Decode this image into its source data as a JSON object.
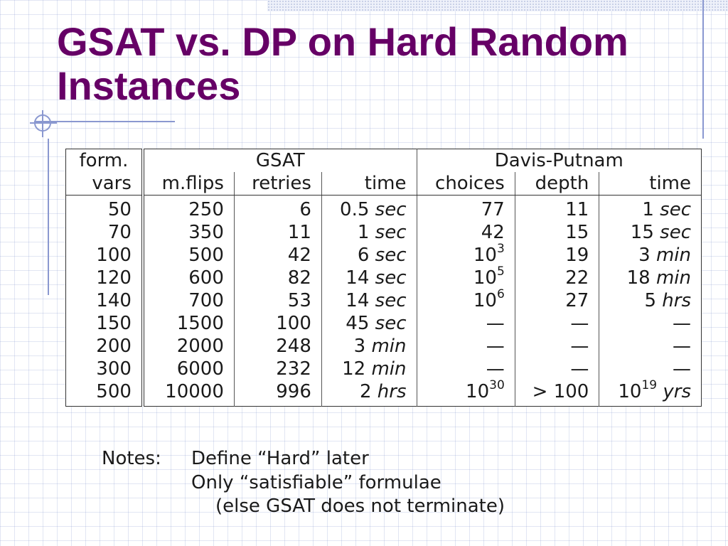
{
  "slide": {
    "title": "GSAT vs. DP on Hard Random Instances"
  },
  "table": {
    "group_headers": [
      "form.",
      "GSAT",
      "Davis-Putnam"
    ],
    "columns": [
      "vars",
      "m.flips",
      "retries",
      "time",
      "choices",
      "depth",
      "time"
    ],
    "rows": [
      {
        "vars": "50",
        "mflips": "250",
        "retries": "6",
        "gsat_time": "0.5",
        "gsat_unit": "sec",
        "choices": "77",
        "choices_exp": "",
        "depth": "11",
        "dp_time": "1",
        "dp_exp": "",
        "dp_unit": "sec"
      },
      {
        "vars": "70",
        "mflips": "350",
        "retries": "11",
        "gsat_time": "1",
        "gsat_unit": "sec",
        "choices": "42",
        "choices_exp": "",
        "depth": "15",
        "dp_time": "15",
        "dp_exp": "",
        "dp_unit": "sec"
      },
      {
        "vars": "100",
        "mflips": "500",
        "retries": "42",
        "gsat_time": "6",
        "gsat_unit": "sec",
        "choices": "10",
        "choices_exp": "3",
        "depth": "19",
        "dp_time": "3",
        "dp_exp": "",
        "dp_unit": "min"
      },
      {
        "vars": "120",
        "mflips": "600",
        "retries": "82",
        "gsat_time": "14",
        "gsat_unit": "sec",
        "choices": "10",
        "choices_exp": "5",
        "depth": "22",
        "dp_time": "18",
        "dp_exp": "",
        "dp_unit": "min"
      },
      {
        "vars": "140",
        "mflips": "700",
        "retries": "53",
        "gsat_time": "14",
        "gsat_unit": "sec",
        "choices": "10",
        "choices_exp": "6",
        "depth": "27",
        "dp_time": "5",
        "dp_exp": "",
        "dp_unit": "hrs"
      },
      {
        "vars": "150",
        "mflips": "1500",
        "retries": "100",
        "gsat_time": "45",
        "gsat_unit": "sec",
        "choices": "—",
        "choices_exp": "",
        "depth": "—",
        "dp_time": "—",
        "dp_exp": "",
        "dp_unit": ""
      },
      {
        "vars": "200",
        "mflips": "2000",
        "retries": "248",
        "gsat_time": "3",
        "gsat_unit": "min",
        "choices": "—",
        "choices_exp": "",
        "depth": "—",
        "dp_time": "—",
        "dp_exp": "",
        "dp_unit": ""
      },
      {
        "vars": "300",
        "mflips": "6000",
        "retries": "232",
        "gsat_time": "12",
        "gsat_unit": "min",
        "choices": "—",
        "choices_exp": "",
        "depth": "—",
        "dp_time": "—",
        "dp_exp": "",
        "dp_unit": ""
      },
      {
        "vars": "500",
        "mflips": "10000",
        "retries": "996",
        "gsat_time": "2",
        "gsat_unit": "hrs",
        "choices": "10",
        "choices_exp": "30",
        "depth": "> 100",
        "dp_time": "10",
        "dp_exp": "19",
        "dp_unit": "yrs"
      }
    ]
  },
  "notes": {
    "label": "Notes:",
    "lines": [
      "Define “Hard” later",
      "Only “satisfiable” formulae",
      "(else GSAT does not terminate)"
    ]
  },
  "colors": {
    "title": "#660066",
    "grid": "#8a98d0",
    "text": "#1a1a1a"
  }
}
